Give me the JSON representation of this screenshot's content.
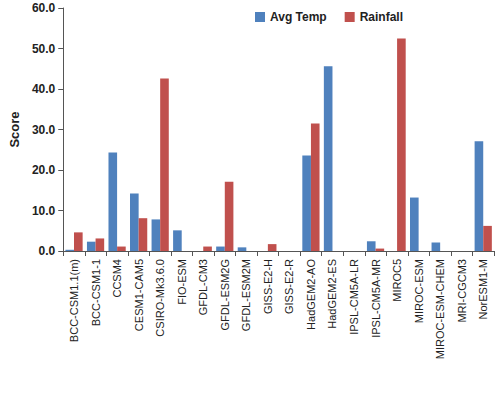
{
  "chart_data": {
    "type": "bar",
    "y_label": "Score",
    "categories": [
      "BCC-CSM1.1(m)",
      "BCC-CSM1-1",
      "CCSM4",
      "CESM1-CAM5",
      "CSIRO-Mk3.6.0",
      "FIO-ESM",
      "GFDL-CM3",
      "GFDL-ESM2G",
      "GFDL-ESM2M",
      "GISS-E2-H",
      "GISS-E2-R",
      "HadGEM2-AO",
      "HadGEM2-ES",
      "IPSL-CM5A-LR",
      "IPSL-CM5A-MR",
      "MIROC5",
      "MIROC-ESM",
      "MIROC-ESM-CHEM",
      "MRI-CGCM3",
      "NorESM1-M"
    ],
    "series": [
      {
        "name": "Avg Temp",
        "color": "#4f81bd",
        "values": [
          0.3,
          2.3,
          24.3,
          14.2,
          7.8,
          5.1,
          0,
          1.1,
          0.9,
          0,
          0,
          23.6,
          45.6,
          0,
          2.4,
          0,
          13.2,
          2.1,
          0,
          27.1
        ]
      },
      {
        "name": "Rainfall",
        "color": "#c0504d",
        "values": [
          4.6,
          3.1,
          1.1,
          8.1,
          42.6,
          0,
          1.1,
          17.1,
          0,
          1.7,
          0,
          31.5,
          0,
          0,
          0.6,
          52.5,
          0,
          0,
          0,
          6.2
        ]
      }
    ],
    "ylim": [
      0,
      60
    ],
    "yticks": [
      {
        "value": 0,
        "label": "0.0"
      },
      {
        "value": 10,
        "label": "10.0"
      },
      {
        "value": 20,
        "label": "20.0"
      },
      {
        "value": 30,
        "label": "30.0"
      },
      {
        "value": 40,
        "label": "40.0"
      },
      {
        "value": 50,
        "label": "50.0"
      },
      {
        "value": 60,
        "label": "60.0"
      }
    ],
    "grid": false,
    "legend": "top"
  }
}
